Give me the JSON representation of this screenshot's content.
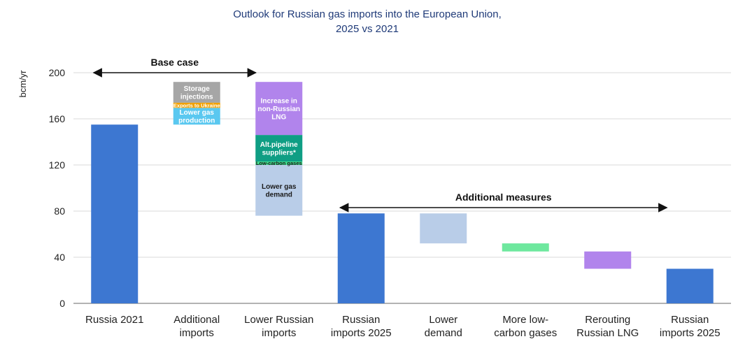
{
  "chart_data": {
    "type": "bar",
    "subtype": "waterfall",
    "title": "Outlook for Russian gas imports into the European Union,",
    "subtitle": "2025 vs 2021",
    "ylabel": "bcm/yr",
    "ylim": [
      0,
      200
    ],
    "yticks": [
      0,
      40,
      80,
      120,
      160,
      200
    ],
    "grid": true,
    "categories": [
      [
        "Russia 2021"
      ],
      [
        "Additional",
        "imports"
      ],
      [
        "Lower Russian",
        "imports"
      ],
      [
        "Russian",
        "imports 2025"
      ],
      [
        "Lower",
        "demand"
      ],
      [
        "More low-",
        "carbon gases"
      ],
      [
        "Rerouting",
        "Russian LNG"
      ],
      [
        "Russian",
        "imports 2025"
      ]
    ],
    "bars": [
      {
        "index": 0,
        "segments": [
          {
            "from": 0,
            "to": 155,
            "color": "#3d77d1",
            "label": []
          }
        ]
      },
      {
        "index": 1,
        "segments": [
          {
            "from": 155,
            "to": 169.5,
            "color": "#5ac8f0",
            "label": [
              "Lower gas",
              "production"
            ]
          },
          {
            "from": 169.5,
            "to": 174,
            "color": "#f0a000",
            "label": [
              "Exports to Ukraine"
            ],
            "small": true
          },
          {
            "from": 174,
            "to": 192,
            "color": "#a6a6a6",
            "label": [
              "Storage",
              "injections"
            ]
          }
        ]
      },
      {
        "index": 2,
        "segments": [
          {
            "from": 76,
            "to": 120,
            "color": "#b9cde8",
            "label": [
              "Lower gas",
              "demand"
            ],
            "dark": true
          },
          {
            "from": 120,
            "to": 123,
            "color": "#3fd98a",
            "label": [
              "Low-carbon gases"
            ],
            "small": true,
            "dark": true
          },
          {
            "from": 123,
            "to": 146,
            "color": "#0f9e84",
            "label": [
              "Alt.pipeline",
              "suppliers*"
            ]
          },
          {
            "from": 146,
            "to": 192,
            "color": "#b184ec",
            "label": [
              "Increase in",
              "non-Russian",
              "LNG"
            ]
          }
        ]
      },
      {
        "index": 3,
        "segments": [
          {
            "from": 0,
            "to": 78,
            "color": "#3d77d1",
            "label": []
          }
        ]
      },
      {
        "index": 4,
        "segments": [
          {
            "from": 52,
            "to": 78,
            "color": "#b9cde8",
            "label": []
          }
        ]
      },
      {
        "index": 5,
        "segments": [
          {
            "from": 45,
            "to": 52,
            "color": "#6ee89e",
            "label": []
          }
        ]
      },
      {
        "index": 6,
        "segments": [
          {
            "from": 30,
            "to": 45,
            "color": "#b184ec",
            "label": []
          }
        ]
      },
      {
        "index": 7,
        "segments": [
          {
            "from": 0,
            "to": 30,
            "color": "#3d77d1",
            "label": []
          }
        ]
      }
    ],
    "annotations": [
      {
        "text": "Base case",
        "from_index": 0,
        "to_index": 2,
        "y": 200
      },
      {
        "text": "Additional measures",
        "from_index": 3,
        "to_index": 7,
        "y": 83
      }
    ]
  }
}
